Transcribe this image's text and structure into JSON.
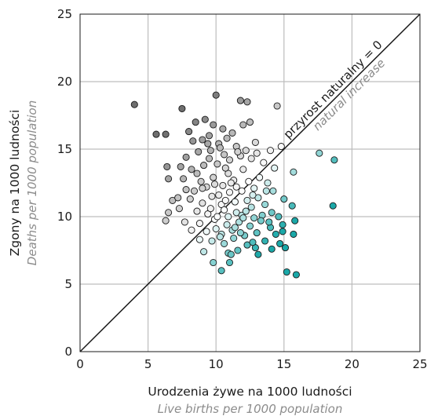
{
  "chart_data": {
    "type": "scatter",
    "xlabel": "Urodzenia żywe na 1000 ludności",
    "xlabel_alt": "Live births per 1000 population",
    "ylabel": "Zgony na 1000 ludności",
    "ylabel_alt": "Deaths per 1000 population",
    "xlim": [
      0,
      25
    ],
    "ylim": [
      0,
      25
    ],
    "xticks": [
      0,
      5,
      10,
      15,
      20,
      25
    ],
    "yticks": [
      0,
      5,
      10,
      15,
      20,
      25
    ],
    "grid": true,
    "reference_line": {
      "from": [
        0,
        0
      ],
      "to": [
        25,
        25
      ],
      "label": "przyrost naturalny = 0",
      "label_alt": "natural increase"
    },
    "color_scale": {
      "metric": "births minus deaths",
      "negative_color": "#6e6e6e",
      "zero_color": "#ffffff",
      "positive_color": "#1aa8a8"
    },
    "points": [
      [
        4.0,
        18.3
      ],
      [
        5.6,
        16.1
      ],
      [
        6.3,
        16.1
      ],
      [
        7.5,
        18.0
      ],
      [
        10.0,
        19.0
      ],
      [
        11.8,
        18.6
      ],
      [
        12.3,
        18.5
      ],
      [
        14.5,
        18.2
      ],
      [
        8.5,
        17.0
      ],
      [
        9.2,
        17.2
      ],
      [
        9.8,
        16.8
      ],
      [
        10.5,
        16.5
      ],
      [
        11.2,
        16.2
      ],
      [
        12.0,
        16.8
      ],
      [
        12.5,
        17.0
      ],
      [
        8.0,
        16.3
      ],
      [
        8.3,
        15.6
      ],
      [
        9.0,
        15.7
      ],
      [
        9.4,
        15.4
      ],
      [
        10.2,
        15.4
      ],
      [
        10.8,
        15.8
      ],
      [
        11.5,
        15.2
      ],
      [
        12.2,
        14.9
      ],
      [
        13.0,
        14.7
      ],
      [
        14.0,
        14.9
      ],
      [
        14.8,
        15.2
      ],
      [
        8.7,
        14.8
      ],
      [
        9.6,
        14.9
      ],
      [
        10.6,
        14.6
      ],
      [
        11.0,
        14.2
      ],
      [
        11.8,
        14.5
      ],
      [
        12.6,
        14.3
      ],
      [
        7.8,
        14.4
      ],
      [
        7.4,
        13.7
      ],
      [
        6.4,
        13.7
      ],
      [
        8.2,
        13.5
      ],
      [
        9.1,
        13.8
      ],
      [
        10.1,
        13.9
      ],
      [
        10.9,
        13.2
      ],
      [
        12.0,
        13.5
      ],
      [
        13.5,
        14.0
      ],
      [
        14.3,
        13.6
      ],
      [
        15.7,
        13.3
      ],
      [
        7.6,
        12.8
      ],
      [
        6.5,
        12.8
      ],
      [
        8.9,
        12.6
      ],
      [
        9.8,
        12.9
      ],
      [
        10.5,
        12.3
      ],
      [
        11.3,
        12.7
      ],
      [
        12.4,
        12.6
      ],
      [
        13.2,
        12.9
      ],
      [
        13.8,
        12.5
      ],
      [
        7.8,
        12.0
      ],
      [
        8.4,
        11.9
      ],
      [
        9.3,
        12.2
      ],
      [
        10.2,
        11.6
      ],
      [
        11.0,
        11.8
      ],
      [
        11.9,
        11.9
      ],
      [
        12.8,
        12.1
      ],
      [
        14.2,
        11.9
      ],
      [
        6.8,
        11.2
      ],
      [
        7.2,
        11.4
      ],
      [
        8.1,
        11.3
      ],
      [
        9.0,
        11.0
      ],
      [
        9.7,
        11.5
      ],
      [
        10.4,
        10.9
      ],
      [
        11.4,
        11.1
      ],
      [
        12.3,
        11.2
      ],
      [
        13.1,
        11.4
      ],
      [
        13.6,
        10.9
      ],
      [
        15.0,
        11.3
      ],
      [
        15.6,
        10.8
      ],
      [
        6.5,
        10.3
      ],
      [
        7.3,
        10.6
      ],
      [
        8.6,
        10.4
      ],
      [
        9.4,
        10.2
      ],
      [
        10.6,
        10.5
      ],
      [
        11.5,
        10.3
      ],
      [
        12.6,
        10.7
      ],
      [
        13.4,
        10.1
      ],
      [
        14.1,
        10.3
      ],
      [
        14.6,
        10.0
      ],
      [
        6.3,
        9.7
      ],
      [
        7.7,
        9.6
      ],
      [
        8.8,
        9.5
      ],
      [
        9.9,
        9.8
      ],
      [
        10.8,
        9.4
      ],
      [
        11.7,
        9.6
      ],
      [
        12.5,
        9.3
      ],
      [
        13.3,
        9.7
      ],
      [
        14.0,
        9.2
      ],
      [
        14.9,
        9.4
      ],
      [
        15.8,
        9.7
      ],
      [
        8.2,
        9.0
      ],
      [
        9.3,
        8.9
      ],
      [
        10.4,
        8.7
      ],
      [
        11.2,
        9.0
      ],
      [
        12.1,
        8.6
      ],
      [
        13.0,
        8.8
      ],
      [
        14.4,
        8.7
      ],
      [
        14.9,
        8.9
      ],
      [
        15.7,
        8.7
      ],
      [
        8.8,
        8.3
      ],
      [
        9.7,
        8.2
      ],
      [
        10.6,
        8.0
      ],
      [
        11.3,
        8.4
      ],
      [
        12.3,
        7.9
      ],
      [
        13.6,
        8.2
      ],
      [
        14.7,
        8.0
      ],
      [
        9.1,
        7.4
      ],
      [
        10.9,
        7.3
      ],
      [
        11.6,
        7.5
      ],
      [
        12.9,
        7.7
      ],
      [
        14.1,
        7.6
      ],
      [
        15.1,
        7.7
      ],
      [
        9.8,
        6.6
      ],
      [
        10.4,
        6.0
      ],
      [
        11.0,
        6.6
      ],
      [
        15.2,
        5.9
      ],
      [
        15.9,
        5.7
      ],
      [
        17.6,
        14.7
      ],
      [
        18.7,
        14.2
      ],
      [
        18.6,
        10.8
      ],
      [
        9.5,
        16.0
      ],
      [
        10.3,
        15.1
      ],
      [
        11.6,
        14.8
      ],
      [
        12.9,
        15.5
      ],
      [
        8.6,
        13.2
      ],
      [
        9.9,
        12.4
      ],
      [
        11.1,
        12.5
      ],
      [
        12.7,
        11.6
      ],
      [
        10.7,
        11.2
      ],
      [
        9.6,
        10.6
      ],
      [
        11.9,
        10.1
      ],
      [
        10.1,
        10.0
      ],
      [
        12.0,
        9.9
      ],
      [
        11.4,
        9.2
      ],
      [
        10.0,
        9.1
      ],
      [
        12.8,
        9.9
      ],
      [
        13.9,
        9.6
      ],
      [
        11.8,
        8.8
      ],
      [
        10.3,
        8.5
      ],
      [
        12.7,
        8.1
      ],
      [
        13.1,
        7.2
      ],
      [
        11.1,
        7.2
      ],
      [
        9.0,
        12.1
      ],
      [
        11.5,
        12.2
      ],
      [
        10.9,
        10.0
      ],
      [
        12.2,
        10.4
      ],
      [
        13.7,
        11.9
      ],
      [
        9.5,
        14.3
      ],
      [
        10.7,
        13.6
      ]
    ]
  }
}
